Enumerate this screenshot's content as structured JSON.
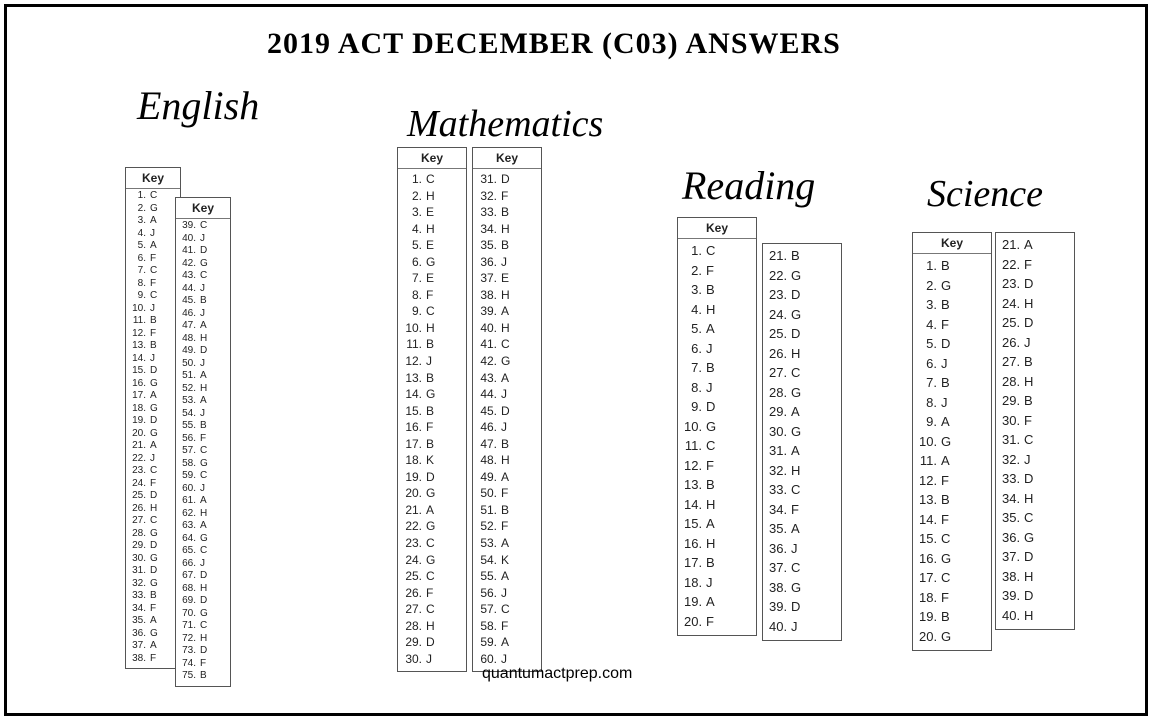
{
  "title": "2019 ACT DECEMBER (C03) ANSWERS",
  "footer": "quantumactprep.com",
  "labels": {
    "english": "English",
    "math": "Mathematics",
    "reading": "Reading",
    "science": "Science",
    "key": "Key"
  },
  "english": {
    "col1": [
      {
        "n": "1.",
        "a": "C"
      },
      {
        "n": "2.",
        "a": "G"
      },
      {
        "n": "3.",
        "a": "A"
      },
      {
        "n": "4.",
        "a": "J"
      },
      {
        "n": "5.",
        "a": "A"
      },
      {
        "n": "6.",
        "a": "F"
      },
      {
        "n": "7.",
        "a": "C"
      },
      {
        "n": "8.",
        "a": "F"
      },
      {
        "n": "9.",
        "a": "C"
      },
      {
        "n": "10.",
        "a": "J"
      },
      {
        "n": "11.",
        "a": "B"
      },
      {
        "n": "12.",
        "a": "F"
      },
      {
        "n": "13.",
        "a": "B"
      },
      {
        "n": "14.",
        "a": "J"
      },
      {
        "n": "15.",
        "a": "D"
      },
      {
        "n": "16.",
        "a": "G"
      },
      {
        "n": "17.",
        "a": "A"
      },
      {
        "n": "18.",
        "a": "G"
      },
      {
        "n": "19.",
        "a": "D"
      },
      {
        "n": "20.",
        "a": "G"
      },
      {
        "n": "21.",
        "a": "A"
      },
      {
        "n": "22.",
        "a": "J"
      },
      {
        "n": "23.",
        "a": "C"
      },
      {
        "n": "24.",
        "a": "F"
      },
      {
        "n": "25.",
        "a": "D"
      },
      {
        "n": "26.",
        "a": "H"
      },
      {
        "n": "27.",
        "a": "C"
      },
      {
        "n": "28.",
        "a": "G"
      },
      {
        "n": "29.",
        "a": "D"
      },
      {
        "n": "30.",
        "a": "G"
      },
      {
        "n": "31.",
        "a": "D"
      },
      {
        "n": "32.",
        "a": "G"
      },
      {
        "n": "33.",
        "a": "B"
      },
      {
        "n": "34.",
        "a": "F"
      },
      {
        "n": "35.",
        "a": "A"
      },
      {
        "n": "36.",
        "a": "G"
      },
      {
        "n": "37.",
        "a": "A"
      },
      {
        "n": "38.",
        "a": "F"
      }
    ],
    "col2": [
      {
        "n": "39.",
        "a": "C"
      },
      {
        "n": "40.",
        "a": "J"
      },
      {
        "n": "41.",
        "a": "D"
      },
      {
        "n": "42.",
        "a": "G"
      },
      {
        "n": "43.",
        "a": "C"
      },
      {
        "n": "44.",
        "a": "J"
      },
      {
        "n": "45.",
        "a": "B"
      },
      {
        "n": "46.",
        "a": "J"
      },
      {
        "n": "47.",
        "a": "A"
      },
      {
        "n": "48.",
        "a": "H"
      },
      {
        "n": "49.",
        "a": "D"
      },
      {
        "n": "50.",
        "a": "J"
      },
      {
        "n": "51.",
        "a": "A"
      },
      {
        "n": "52.",
        "a": "H"
      },
      {
        "n": "53.",
        "a": "A"
      },
      {
        "n": "54.",
        "a": "J"
      },
      {
        "n": "55.",
        "a": "B"
      },
      {
        "n": "56.",
        "a": "F"
      },
      {
        "n": "57.",
        "a": "C"
      },
      {
        "n": "58.",
        "a": "G"
      },
      {
        "n": "59.",
        "a": "C"
      },
      {
        "n": "60.",
        "a": "J"
      },
      {
        "n": "61.",
        "a": "A"
      },
      {
        "n": "62.",
        "a": "H"
      },
      {
        "n": "63.",
        "a": "A"
      },
      {
        "n": "64.",
        "a": "G"
      },
      {
        "n": "65.",
        "a": "C"
      },
      {
        "n": "66.",
        "a": "J"
      },
      {
        "n": "67.",
        "a": "D"
      },
      {
        "n": "68.",
        "a": "H"
      },
      {
        "n": "69.",
        "a": "D"
      },
      {
        "n": "70.",
        "a": "G"
      },
      {
        "n": "71.",
        "a": "C"
      },
      {
        "n": "72.",
        "a": "H"
      },
      {
        "n": "73.",
        "a": "D"
      },
      {
        "n": "74.",
        "a": "F"
      },
      {
        "n": "75.",
        "a": "B"
      }
    ]
  },
  "math": {
    "col1": [
      {
        "n": "1.",
        "a": "C"
      },
      {
        "n": "2.",
        "a": "H"
      },
      {
        "n": "3.",
        "a": "E"
      },
      {
        "n": "4.",
        "a": "H"
      },
      {
        "n": "5.",
        "a": "E"
      },
      {
        "n": "6.",
        "a": "G"
      },
      {
        "n": "7.",
        "a": "E"
      },
      {
        "n": "8.",
        "a": "F"
      },
      {
        "n": "9.",
        "a": "C"
      },
      {
        "n": "10.",
        "a": "H"
      },
      {
        "n": "11.",
        "a": "B"
      },
      {
        "n": "12.",
        "a": "J"
      },
      {
        "n": "13.",
        "a": "B"
      },
      {
        "n": "14.",
        "a": "G"
      },
      {
        "n": "15.",
        "a": "B"
      },
      {
        "n": "16.",
        "a": "F"
      },
      {
        "n": "17.",
        "a": "B"
      },
      {
        "n": "18.",
        "a": "K"
      },
      {
        "n": "19.",
        "a": "D"
      },
      {
        "n": "20.",
        "a": "G"
      },
      {
        "n": "21.",
        "a": "A"
      },
      {
        "n": "22.",
        "a": "G"
      },
      {
        "n": "23.",
        "a": "C"
      },
      {
        "n": "24.",
        "a": "G"
      },
      {
        "n": "25.",
        "a": "C"
      },
      {
        "n": "26.",
        "a": "F"
      },
      {
        "n": "27.",
        "a": "C"
      },
      {
        "n": "28.",
        "a": "H"
      },
      {
        "n": "29.",
        "a": "D"
      },
      {
        "n": "30.",
        "a": "J"
      }
    ],
    "col2": [
      {
        "n": "31.",
        "a": "D"
      },
      {
        "n": "32.",
        "a": "F"
      },
      {
        "n": "33.",
        "a": "B"
      },
      {
        "n": "34.",
        "a": "H"
      },
      {
        "n": "35.",
        "a": "B"
      },
      {
        "n": "36.",
        "a": "J"
      },
      {
        "n": "37.",
        "a": "E"
      },
      {
        "n": "38.",
        "a": "H"
      },
      {
        "n": "39.",
        "a": "A"
      },
      {
        "n": "40.",
        "a": "H"
      },
      {
        "n": "41.",
        "a": "C"
      },
      {
        "n": "42.",
        "a": "G"
      },
      {
        "n": "43.",
        "a": "A"
      },
      {
        "n": "44.",
        "a": "J"
      },
      {
        "n": "45.",
        "a": "D"
      },
      {
        "n": "46.",
        "a": "J"
      },
      {
        "n": "47.",
        "a": "B"
      },
      {
        "n": "48.",
        "a": "H"
      },
      {
        "n": "49.",
        "a": "A"
      },
      {
        "n": "50.",
        "a": "F"
      },
      {
        "n": "51.",
        "a": "B"
      },
      {
        "n": "52.",
        "a": "F"
      },
      {
        "n": "53.",
        "a": "A"
      },
      {
        "n": "54.",
        "a": "K"
      },
      {
        "n": "55.",
        "a": "A"
      },
      {
        "n": "56.",
        "a": "J"
      },
      {
        "n": "57.",
        "a": "C"
      },
      {
        "n": "58.",
        "a": "F"
      },
      {
        "n": "59.",
        "a": "A"
      },
      {
        "n": "60.",
        "a": "J"
      }
    ]
  },
  "reading": {
    "col1": [
      {
        "n": "1.",
        "a": "C"
      },
      {
        "n": "2.",
        "a": "F"
      },
      {
        "n": "3.",
        "a": "B"
      },
      {
        "n": "4.",
        "a": "H"
      },
      {
        "n": "5.",
        "a": "A"
      },
      {
        "n": "6.",
        "a": "J"
      },
      {
        "n": "7.",
        "a": "B"
      },
      {
        "n": "8.",
        "a": "J"
      },
      {
        "n": "9.",
        "a": "D"
      },
      {
        "n": "10.",
        "a": "G"
      },
      {
        "n": "11.",
        "a": "C"
      },
      {
        "n": "12.",
        "a": "F"
      },
      {
        "n": "13.",
        "a": "B"
      },
      {
        "n": "14.",
        "a": "H"
      },
      {
        "n": "15.",
        "a": "A"
      },
      {
        "n": "16.",
        "a": "H"
      },
      {
        "n": "17.",
        "a": "B"
      },
      {
        "n": "18.",
        "a": "J"
      },
      {
        "n": "19.",
        "a": "A"
      },
      {
        "n": "20.",
        "a": "F"
      }
    ],
    "col2": [
      {
        "n": "21.",
        "a": "B"
      },
      {
        "n": "22.",
        "a": "G"
      },
      {
        "n": "23.",
        "a": "D"
      },
      {
        "n": "24.",
        "a": "G"
      },
      {
        "n": "25.",
        "a": "D"
      },
      {
        "n": "26.",
        "a": "H"
      },
      {
        "n": "27.",
        "a": "C"
      },
      {
        "n": "28.",
        "a": "G"
      },
      {
        "n": "29.",
        "a": "A"
      },
      {
        "n": "30.",
        "a": "G"
      },
      {
        "n": "31.",
        "a": "A"
      },
      {
        "n": "32.",
        "a": "H"
      },
      {
        "n": "33.",
        "a": "C"
      },
      {
        "n": "34.",
        "a": "F"
      },
      {
        "n": "35.",
        "a": "A"
      },
      {
        "n": "36.",
        "a": "J"
      },
      {
        "n": "37.",
        "a": "C"
      },
      {
        "n": "38.",
        "a": "G"
      },
      {
        "n": "39.",
        "a": "D"
      },
      {
        "n": "40.",
        "a": "J"
      }
    ]
  },
  "science": {
    "col1": [
      {
        "n": "1.",
        "a": "B"
      },
      {
        "n": "2.",
        "a": "G"
      },
      {
        "n": "3.",
        "a": "B"
      },
      {
        "n": "4.",
        "a": "F"
      },
      {
        "n": "5.",
        "a": "D"
      },
      {
        "n": "6.",
        "a": "J"
      },
      {
        "n": "7.",
        "a": "B"
      },
      {
        "n": "8.",
        "a": "J"
      },
      {
        "n": "9.",
        "a": "A"
      },
      {
        "n": "10.",
        "a": "G"
      },
      {
        "n": "11.",
        "a": "A"
      },
      {
        "n": "12.",
        "a": "F"
      },
      {
        "n": "13.",
        "a": "B"
      },
      {
        "n": "14.",
        "a": "F"
      },
      {
        "n": "15.",
        "a": "C"
      },
      {
        "n": "16.",
        "a": "G"
      },
      {
        "n": "17.",
        "a": "C"
      },
      {
        "n": "18.",
        "a": "F"
      },
      {
        "n": "19.",
        "a": "B"
      },
      {
        "n": "20.",
        "a": "G"
      }
    ],
    "col2": [
      {
        "n": "21.",
        "a": "A"
      },
      {
        "n": "22.",
        "a": "F"
      },
      {
        "n": "23.",
        "a": "D"
      },
      {
        "n": "24.",
        "a": "H"
      },
      {
        "n": "25.",
        "a": "D"
      },
      {
        "n": "26.",
        "a": "J"
      },
      {
        "n": "27.",
        "a": "B"
      },
      {
        "n": "28.",
        "a": "H"
      },
      {
        "n": "29.",
        "a": "B"
      },
      {
        "n": "30.",
        "a": "F"
      },
      {
        "n": "31.",
        "a": "C"
      },
      {
        "n": "32.",
        "a": "J"
      },
      {
        "n": "33.",
        "a": "D"
      },
      {
        "n": "34.",
        "a": "H"
      },
      {
        "n": "35.",
        "a": "C"
      },
      {
        "n": "36.",
        "a": "G"
      },
      {
        "n": "37.",
        "a": "D"
      },
      {
        "n": "38.",
        "a": "H"
      },
      {
        "n": "39.",
        "a": "D"
      },
      {
        "n": "40.",
        "a": "H"
      }
    ]
  }
}
